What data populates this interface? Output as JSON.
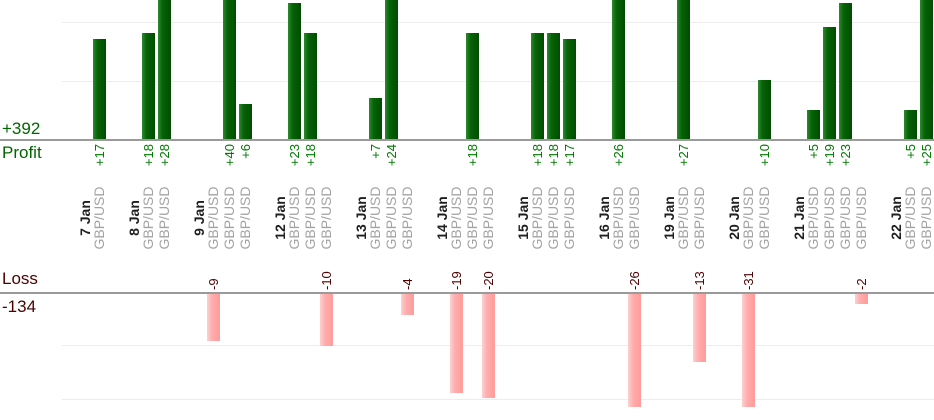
{
  "profit_section": {
    "total_label": "+392",
    "title": "Profit"
  },
  "loss_section": {
    "title": "Loss",
    "total_label": "-134"
  },
  "chart_data": {
    "type": "bar",
    "layout": "two stacked bar charts (profit above, loss below) sharing one rotated category axis; gridlines every 10 units; tall bars clipped at chart edges",
    "categories": [
      "7 Jan",
      "8 Jan",
      "9 Jan",
      "12 Jan",
      "13 Jan",
      "14 Jan",
      "15 Jan",
      "16 Jan",
      "19 Jan",
      "20 Jan",
      "21 Jan",
      "22 Jan"
    ],
    "groups": [
      {
        "date": "7 Jan",
        "trades": [
          {
            "instrument": "GBP/USD",
            "value": 17,
            "label": "+17"
          }
        ]
      },
      {
        "date": "8 Jan",
        "trades": [
          {
            "instrument": "GBP/USD",
            "value": 18,
            "label": "+18"
          },
          {
            "instrument": "GBP/USD",
            "value": 28,
            "label": "+28"
          }
        ]
      },
      {
        "date": "9 Jan",
        "trades": [
          {
            "instrument": "GBP/USD",
            "value": -9,
            "label": "-9"
          },
          {
            "instrument": "GBP/USD",
            "value": 40,
            "label": "+40"
          },
          {
            "instrument": "GBP/USD",
            "value": 6,
            "label": "+6"
          }
        ]
      },
      {
        "date": "12 Jan",
        "trades": [
          {
            "instrument": "GBP/USD",
            "value": 23,
            "label": "+23"
          },
          {
            "instrument": "GBP/USD",
            "value": 18,
            "label": "+18"
          },
          {
            "instrument": "GBP/USD",
            "value": -10,
            "label": "-10"
          }
        ]
      },
      {
        "date": "13 Jan",
        "trades": [
          {
            "instrument": "GBP/USD",
            "value": 7,
            "label": "+7"
          },
          {
            "instrument": "GBP/USD",
            "value": 24,
            "label": "+24"
          },
          {
            "instrument": "GBP/USD",
            "value": -4,
            "label": "-4"
          }
        ]
      },
      {
        "date": "14 Jan",
        "trades": [
          {
            "instrument": "GBP/USD",
            "value": -19,
            "label": "-19"
          },
          {
            "instrument": "GBP/USD",
            "value": 18,
            "label": "+18"
          },
          {
            "instrument": "GBP/USD",
            "value": -20,
            "label": "-20"
          }
        ]
      },
      {
        "date": "15 Jan",
        "trades": [
          {
            "instrument": "GBP/USD",
            "value": 18,
            "label": "+18"
          },
          {
            "instrument": "GBP/USD",
            "value": 18,
            "label": "+18"
          },
          {
            "instrument": "GBP/USD",
            "value": 17,
            "label": "+17"
          }
        ]
      },
      {
        "date": "16 Jan",
        "trades": [
          {
            "instrument": "GBP/USD",
            "value": 26,
            "label": "+26"
          },
          {
            "instrument": "GBP/USD",
            "value": -26,
            "label": "-26"
          }
        ]
      },
      {
        "date": "19 Jan",
        "trades": [
          {
            "instrument": "GBP/USD",
            "value": 27,
            "label": "+27"
          },
          {
            "instrument": "GBP/USD",
            "value": -13,
            "label": "-13"
          }
        ]
      },
      {
        "date": "20 Jan",
        "trades": [
          {
            "instrument": "GBP/USD",
            "value": -31,
            "label": "-31"
          },
          {
            "instrument": "GBP/USD",
            "value": 10,
            "label": "+10"
          }
        ]
      },
      {
        "date": "21 Jan",
        "trades": [
          {
            "instrument": "GBP/USD",
            "value": 5,
            "label": "+5"
          },
          {
            "instrument": "GBP/USD",
            "value": 19,
            "label": "+19"
          },
          {
            "instrument": "GBP/USD",
            "value": 23,
            "label": "+23"
          },
          {
            "instrument": "GBP/USD",
            "value": -2,
            "label": "-2"
          }
        ]
      },
      {
        "date": "22 Jan",
        "trades": [
          {
            "instrument": "GBP/USD",
            "value": 5,
            "label": "+5"
          },
          {
            "instrument": "GBP/USD",
            "value": 25,
            "label": "+25"
          }
        ]
      }
    ],
    "profit": {
      "title": "Profit",
      "total_label": "+392",
      "total": 392,
      "text_color": "#006600",
      "value_label_color": "#007a00",
      "bar_color": "#0a6b0a",
      "gridline_unit": 10
    },
    "loss": {
      "title": "Loss",
      "total_label": "-134",
      "total": -134,
      "text_color": "#4d0000",
      "value_label_color": "#4d0000",
      "bar_color": "#ffacac",
      "gridline_unit": 10
    },
    "date_text_color": "#1f1f1f",
    "instrument_text_color": "#a3a3a3"
  }
}
